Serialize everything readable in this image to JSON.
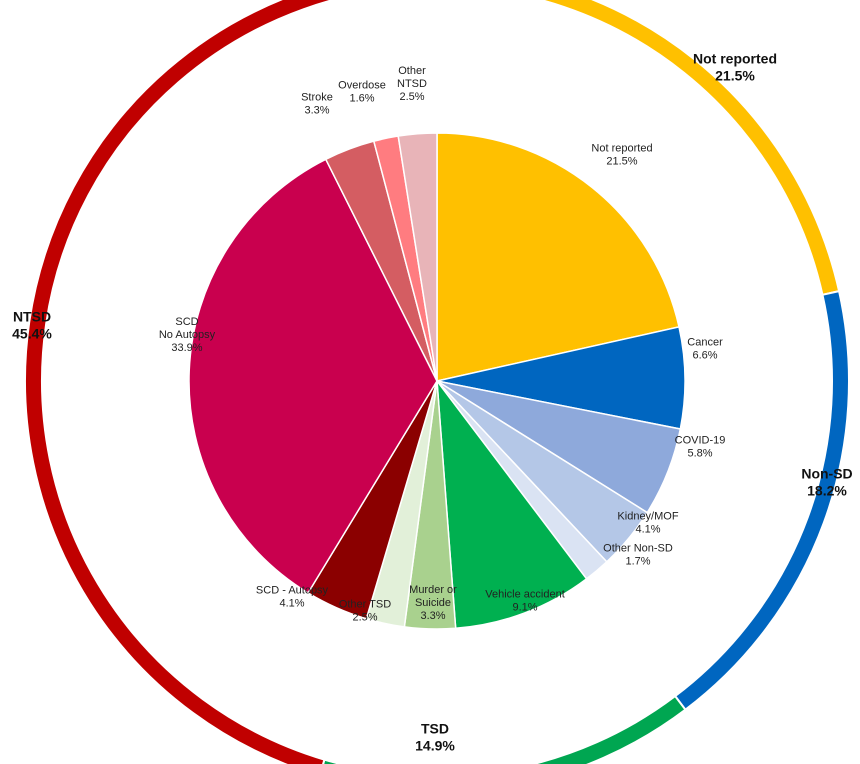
{
  "chart_data": {
    "type": "pie",
    "variant": "nested donut (inner pie + outer ring)",
    "inner": [
      {
        "name": "Not reported",
        "value": 21.5,
        "label_lines": [
          "Not reported",
          "21.5%"
        ],
        "color": "#FFC000"
      },
      {
        "name": "Cancer",
        "value": 6.6,
        "label_lines": [
          "Cancer",
          "6.6%"
        ],
        "color": "#0066C0"
      },
      {
        "name": "COVID-19",
        "value": 5.8,
        "label_lines": [
          "COVID-19",
          "5.8%"
        ],
        "color": "#8EA9DB"
      },
      {
        "name": "Kidney/MOF",
        "value": 4.1,
        "label_lines": [
          "Kidney/MOF",
          "4.1%"
        ],
        "color": "#B4C7E7"
      },
      {
        "name": "Other Non-SD",
        "value": 1.7,
        "label_lines": [
          "Other Non-SD",
          "1.7%"
        ],
        "color": "#DAE3F3"
      },
      {
        "name": "Vehicle accident",
        "value": 9.1,
        "label_lines": [
          "Vehicle accident",
          "9.1%"
        ],
        "color": "#00B050"
      },
      {
        "name": "Murder or Suicide",
        "value": 3.3,
        "label_lines": [
          "Murder or",
          "Suicide",
          "3.3%"
        ],
        "color": "#A9D18E"
      },
      {
        "name": "Other TSD",
        "value": 2.5,
        "label_lines": [
          "Other TSD",
          "2.5%"
        ],
        "color": "#E2F0D9"
      },
      {
        "name": "SCD - Autopsy",
        "value": 4.1,
        "label_lines": [
          "SCD - Autopsy",
          "4.1%"
        ],
        "color": "#8B0000"
      },
      {
        "name": "SCD No Autopsy",
        "value": 33.9,
        "label_lines": [
          "SCD",
          "No Autopsy",
          "33.9%"
        ],
        "color": "#C9004E"
      },
      {
        "name": "Stroke",
        "value": 3.3,
        "label_lines": [
          "Stroke",
          "3.3%"
        ],
        "color": "#D45D62"
      },
      {
        "name": "Overdose",
        "value": 1.6,
        "label_lines": [
          "Overdose",
          "1.6%"
        ],
        "color": "#FF7C80"
      },
      {
        "name": "Other NTSD",
        "value": 2.5,
        "label_lines": [
          "Other",
          "NTSD",
          "2.5%"
        ],
        "color": "#E8B4B8"
      }
    ],
    "outer": [
      {
        "name": "Not reported",
        "value": 21.5,
        "label_lines": [
          "Not reported",
          "21.5%"
        ],
        "color": "#FFC000"
      },
      {
        "name": "Non-SD",
        "value": 18.2,
        "label_lines": [
          "Non-SD",
          "18.2%"
        ],
        "color": "#0066C0"
      },
      {
        "name": "TSD",
        "value": 14.9,
        "label_lines": [
          "TSD",
          "14.9%"
        ],
        "color": "#00A651"
      },
      {
        "name": "NTSD",
        "value": 45.4,
        "label_lines": [
          "NTSD",
          "45.4%"
        ],
        "color": "#C00000"
      }
    ],
    "start": "12 o'clock, clockwise",
    "legend": "none (direct labels)"
  }
}
